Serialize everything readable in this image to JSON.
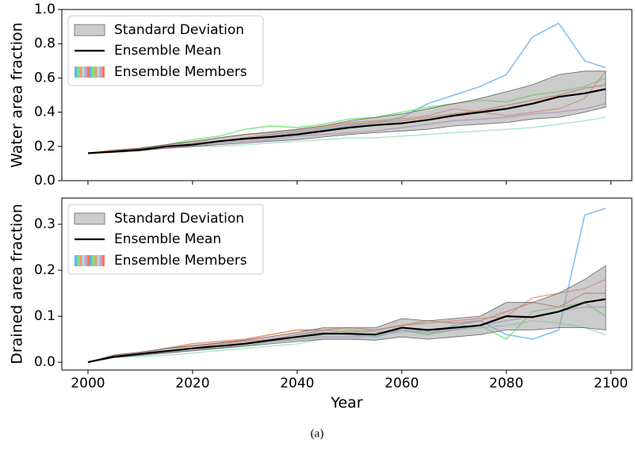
{
  "caption": "(a)",
  "chart_data": [
    {
      "type": "line",
      "ylabel": "Water area fraction",
      "x": [
        2000,
        2005,
        2010,
        2015,
        2020,
        2025,
        2030,
        2035,
        2040,
        2045,
        2050,
        2055,
        2060,
        2065,
        2070,
        2075,
        2080,
        2085,
        2090,
        2095,
        2099
      ],
      "xlim": [
        1995,
        2104
      ],
      "xticks": [
        2000,
        2020,
        2040,
        2060,
        2080,
        2100
      ],
      "ylim": [
        0,
        1
      ],
      "yticks": [
        {
          "value": 0,
          "label": "0.0"
        },
        0.2,
        0.4,
        0.6,
        0.8,
        {
          "value": 1,
          "label": "1.0"
        }
      ],
      "band": {
        "name": "Standard Deviation",
        "color": "#999999",
        "lower": [
          0.16,
          0.165,
          0.175,
          0.19,
          0.2,
          0.21,
          0.22,
          0.23,
          0.24,
          0.255,
          0.27,
          0.28,
          0.29,
          0.3,
          0.32,
          0.33,
          0.34,
          0.36,
          0.37,
          0.4,
          0.43
        ],
        "upper": [
          0.16,
          0.175,
          0.19,
          0.21,
          0.23,
          0.25,
          0.27,
          0.285,
          0.3,
          0.32,
          0.35,
          0.37,
          0.39,
          0.42,
          0.45,
          0.48,
          0.52,
          0.56,
          0.62,
          0.64,
          0.64
        ]
      },
      "series": [
        {
          "name": "Ensemble Mean",
          "color": "#000000",
          "values": [
            0.16,
            0.17,
            0.18,
            0.2,
            0.21,
            0.23,
            0.245,
            0.255,
            0.27,
            0.29,
            0.31,
            0.325,
            0.335,
            0.355,
            0.38,
            0.4,
            0.42,
            0.45,
            0.49,
            0.51,
            0.535
          ]
        }
      ],
      "members": {
        "name": "Ensemble Members",
        "series": [
          {
            "color": "#6ab0ee",
            "values": [
              0.16,
              0.17,
              0.18,
              0.2,
              0.21,
              0.23,
              0.25,
              0.26,
              0.28,
              0.3,
              0.32,
              0.34,
              0.37,
              0.45,
              0.5,
              0.55,
              0.62,
              0.84,
              0.92,
              0.7,
              0.66
            ]
          },
          {
            "color": "#6ee86e",
            "values": [
              0.16,
              0.17,
              0.19,
              0.21,
              0.24,
              0.26,
              0.3,
              0.32,
              0.31,
              0.33,
              0.36,
              0.37,
              0.4,
              0.43,
              0.45,
              0.47,
              0.46,
              0.5,
              0.52,
              0.55,
              0.6
            ]
          },
          {
            "color": "#f7957a",
            "values": [
              0.16,
              0.18,
              0.19,
              0.21,
              0.22,
              0.25,
              0.27,
              0.28,
              0.3,
              0.32,
              0.34,
              0.35,
              0.36,
              0.38,
              0.42,
              0.4,
              0.38,
              0.4,
              0.42,
              0.48,
              0.64
            ]
          },
          {
            "color": "#a6e0d0",
            "values": [
              0.16,
              0.165,
              0.175,
              0.19,
              0.2,
              0.2,
              0.21,
              0.22,
              0.23,
              0.24,
              0.25,
              0.25,
              0.26,
              0.27,
              0.28,
              0.29,
              0.3,
              0.31,
              0.33,
              0.35,
              0.37
            ]
          },
          {
            "color": "#c79be0",
            "values": [
              0.16,
              0.17,
              0.18,
              0.19,
              0.2,
              0.22,
              0.23,
              0.24,
              0.26,
              0.27,
              0.28,
              0.29,
              0.31,
              0.33,
              0.35,
              0.36,
              0.37,
              0.39,
              0.4,
              0.42,
              0.45
            ]
          },
          {
            "color": "#f07b50",
            "values": [
              0.16,
              0.17,
              0.18,
              0.2,
              0.21,
              0.23,
              0.25,
              0.27,
              0.29,
              0.31,
              0.33,
              0.34,
              0.35,
              0.37,
              0.39,
              0.41,
              0.44,
              0.47,
              0.5,
              0.54,
              0.56
            ]
          }
        ]
      }
    },
    {
      "type": "line",
      "ylabel": "Drained area fraction",
      "xlabel": "Year",
      "x": [
        2000,
        2005,
        2010,
        2015,
        2020,
        2025,
        2030,
        2035,
        2040,
        2045,
        2050,
        2055,
        2060,
        2065,
        2070,
        2075,
        2080,
        2085,
        2090,
        2095,
        2099
      ],
      "xlim": [
        1995,
        2104
      ],
      "xticks": [
        2000,
        2020,
        2040,
        2060,
        2080,
        2100
      ],
      "ylim": [
        -0.017,
        0.357
      ],
      "yticks": [
        {
          "value": 0,
          "label": "0.0"
        },
        0.1,
        0.2,
        0.3
      ],
      "band": {
        "name": "Standard Deviation",
        "color": "#999999",
        "lower": [
          0,
          0.01,
          0.015,
          0.02,
          0.025,
          0.03,
          0.035,
          0.04,
          0.045,
          0.05,
          0.05,
          0.048,
          0.055,
          0.05,
          0.055,
          0.06,
          0.07,
          0.07,
          0.075,
          0.075,
          0.07
        ],
        "upper": [
          0,
          0.016,
          0.022,
          0.03,
          0.036,
          0.042,
          0.048,
          0.056,
          0.065,
          0.075,
          0.075,
          0.075,
          0.095,
          0.09,
          0.095,
          0.1,
          0.13,
          0.13,
          0.15,
          0.18,
          0.21
        ]
      },
      "series": [
        {
          "name": "Ensemble Mean",
          "color": "#000000",
          "values": [
            0,
            0.012,
            0.018,
            0.024,
            0.03,
            0.035,
            0.04,
            0.048,
            0.055,
            0.062,
            0.062,
            0.06,
            0.075,
            0.07,
            0.075,
            0.08,
            0.1,
            0.098,
            0.11,
            0.13,
            0.137
          ]
        }
      ],
      "members": {
        "name": "Ensemble Members",
        "series": [
          {
            "color": "#6ab0ee",
            "values": [
              0,
              0.01,
              0.02,
              0.025,
              0.03,
              0.04,
              0.045,
              0.05,
              0.06,
              0.065,
              0.06,
              0.055,
              0.07,
              0.06,
              0.08,
              0.09,
              0.06,
              0.05,
              0.07,
              0.32,
              0.335
            ]
          },
          {
            "color": "#6ee86e",
            "values": [
              0,
              0.012,
              0.015,
              0.02,
              0.03,
              0.03,
              0.035,
              0.045,
              0.05,
              0.06,
              0.07,
              0.065,
              0.07,
              0.06,
              0.07,
              0.08,
              0.05,
              0.11,
              0.12,
              0.13,
              0.1
            ]
          },
          {
            "color": "#f7957a",
            "values": [
              0,
              0.015,
              0.02,
              0.03,
              0.035,
              0.04,
              0.045,
              0.05,
              0.06,
              0.07,
              0.065,
              0.07,
              0.08,
              0.085,
              0.09,
              0.095,
              0.1,
              0.14,
              0.15,
              0.16,
              0.18
            ]
          },
          {
            "color": "#a6e0d0",
            "values": [
              0,
              0.01,
              0.012,
              0.015,
              0.02,
              0.025,
              0.03,
              0.035,
              0.04,
              0.05,
              0.05,
              0.06,
              0.065,
              0.07,
              0.07,
              0.075,
              0.08,
              0.09,
              0.085,
              0.075,
              0.06
            ]
          },
          {
            "color": "#c79be0",
            "values": [
              0,
              0.012,
              0.016,
              0.02,
              0.025,
              0.03,
              0.04,
              0.045,
              0.05,
              0.055,
              0.055,
              0.06,
              0.07,
              0.065,
              0.07,
              0.08,
              0.09,
              0.1,
              0.11,
              0.12,
              0.12
            ]
          },
          {
            "color": "#f07b50",
            "values": [
              0,
              0.014,
              0.02,
              0.03,
              0.04,
              0.045,
              0.05,
              0.06,
              0.07,
              0.07,
              0.075,
              0.07,
              0.08,
              0.09,
              0.085,
              0.09,
              0.11,
              0.13,
              0.12,
              0.15,
              0.15
            ]
          }
        ]
      }
    }
  ]
}
